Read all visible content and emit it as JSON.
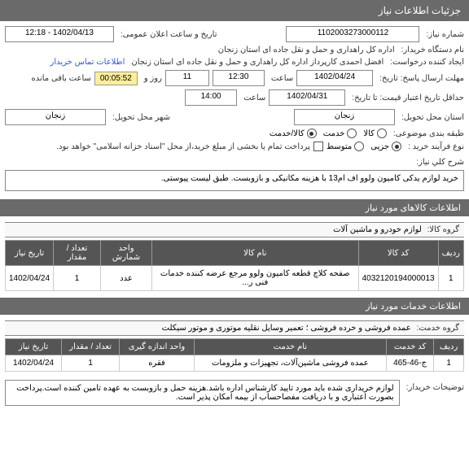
{
  "panel": {
    "title": "جزئیات اطلاعات نیاز"
  },
  "fields": {
    "need_no_label": "شماره نیاز:",
    "need_no": "1102003273000112",
    "pub_date_label": "تاریخ و ساعت اعلان عمومی:",
    "pub_date": "1402/04/13 - 12:18",
    "buyer_org_label": "نام دستگاه خریدار:",
    "buyer_org": "اداره کل راهداری و حمل و نقل جاده ای استان زنجان",
    "requester_label": "ایجاد کننده درخواست:",
    "requester": "افضل احمدی کارپرداز اداره کل راهداری و حمل و نقل جاده ای استان زنجان",
    "contact_link": "اطلاعات تماس خریدار",
    "deadline_label": "مهلت ارسال پاسخ: تاریخ:",
    "deadline_date": "1402/04/24",
    "deadline_time_label": "ساعت",
    "deadline_time": "12:30",
    "days_label": "روز و",
    "days": "11",
    "remain_label": "ساعت باقی مانده",
    "remain": "00:05:52",
    "validity_label": "حداقل تاریخ اعتبار قیمت: تا تاریخ:",
    "validity_date": "1402/04/31",
    "validity_time_label": "ساعت",
    "validity_time": "14:00",
    "loc_label": "استان محل تحویل:",
    "loc_province": "زنجان",
    "loc_city_label": "شهر محل تحویل:",
    "loc_city": "زنجان",
    "classify_label": "طبقه بندی موضوعی:",
    "opt_goods": "کالا",
    "opt_service": "خدمت",
    "opt_both": "کالا/خدمت",
    "proc_label": "نوع فرآیند خرید :",
    "proc_opt1": "جزیی",
    "proc_opt2": "متوسط",
    "proc_note": "پرداخت تمام یا بخشی از مبلغ خرید،از محل \"اسناد خزانه اسلامی\" خواهد بود.",
    "desc_label": "شرح کلي نیاز:",
    "desc": "خرید لوازم یدکی کامیون ولوو اف ام13 با هزینه مکانیکی و بازوبست. طبق لیست پیوستی."
  },
  "goods_section": {
    "header": "اطلاعات کالاهای مورد نیاز",
    "group_label": "گروه کالا:",
    "group_value": "لوازم خودرو و ماشین آلات",
    "columns": [
      "ردیف",
      "کد کالا",
      "نام کالا",
      "واحد شمارش",
      "تعداد / مقدار",
      "تاریخ نیاز"
    ],
    "rows": [
      [
        "1",
        "4032120194000013",
        "صفحه کلاچ قطعه کامیون ولوو مرجع عرضه کننده خدمات فنى ر...",
        "عدد",
        "1",
        "1402/04/24"
      ]
    ]
  },
  "services_section": {
    "header": "اطلاعات خدمات مورد نیاز",
    "group_label": "گروه خدمت:",
    "group_value": "عمده فروشی و خرده فروشی ؛ تعمیر وسایل نقلیه موتوری و موتور سیکلت",
    "columns": [
      "ردیف",
      "کد خدمت",
      "نام خدمت",
      "واحد اندازه گیری",
      "تعداد / مقدار",
      "تاریخ نیاز"
    ],
    "rows": [
      [
        "1",
        "ج-46-465",
        "عمده فروشی ماشین‌آلات، تجهیزات و ملزومات",
        "فقره",
        "1",
        "1402/04/24"
      ]
    ]
  },
  "notes": {
    "label": "توضیحات خریدار:",
    "text": "لوازم خریداری شده باید مورد تایید کارشناس اداره باشد.هزینه حمل و بازوبست به عهده تامین کننده است.پرداخت بصورت اعتباری و با دریافت مفصاحساب از بیمه امکان پذیر است."
  }
}
